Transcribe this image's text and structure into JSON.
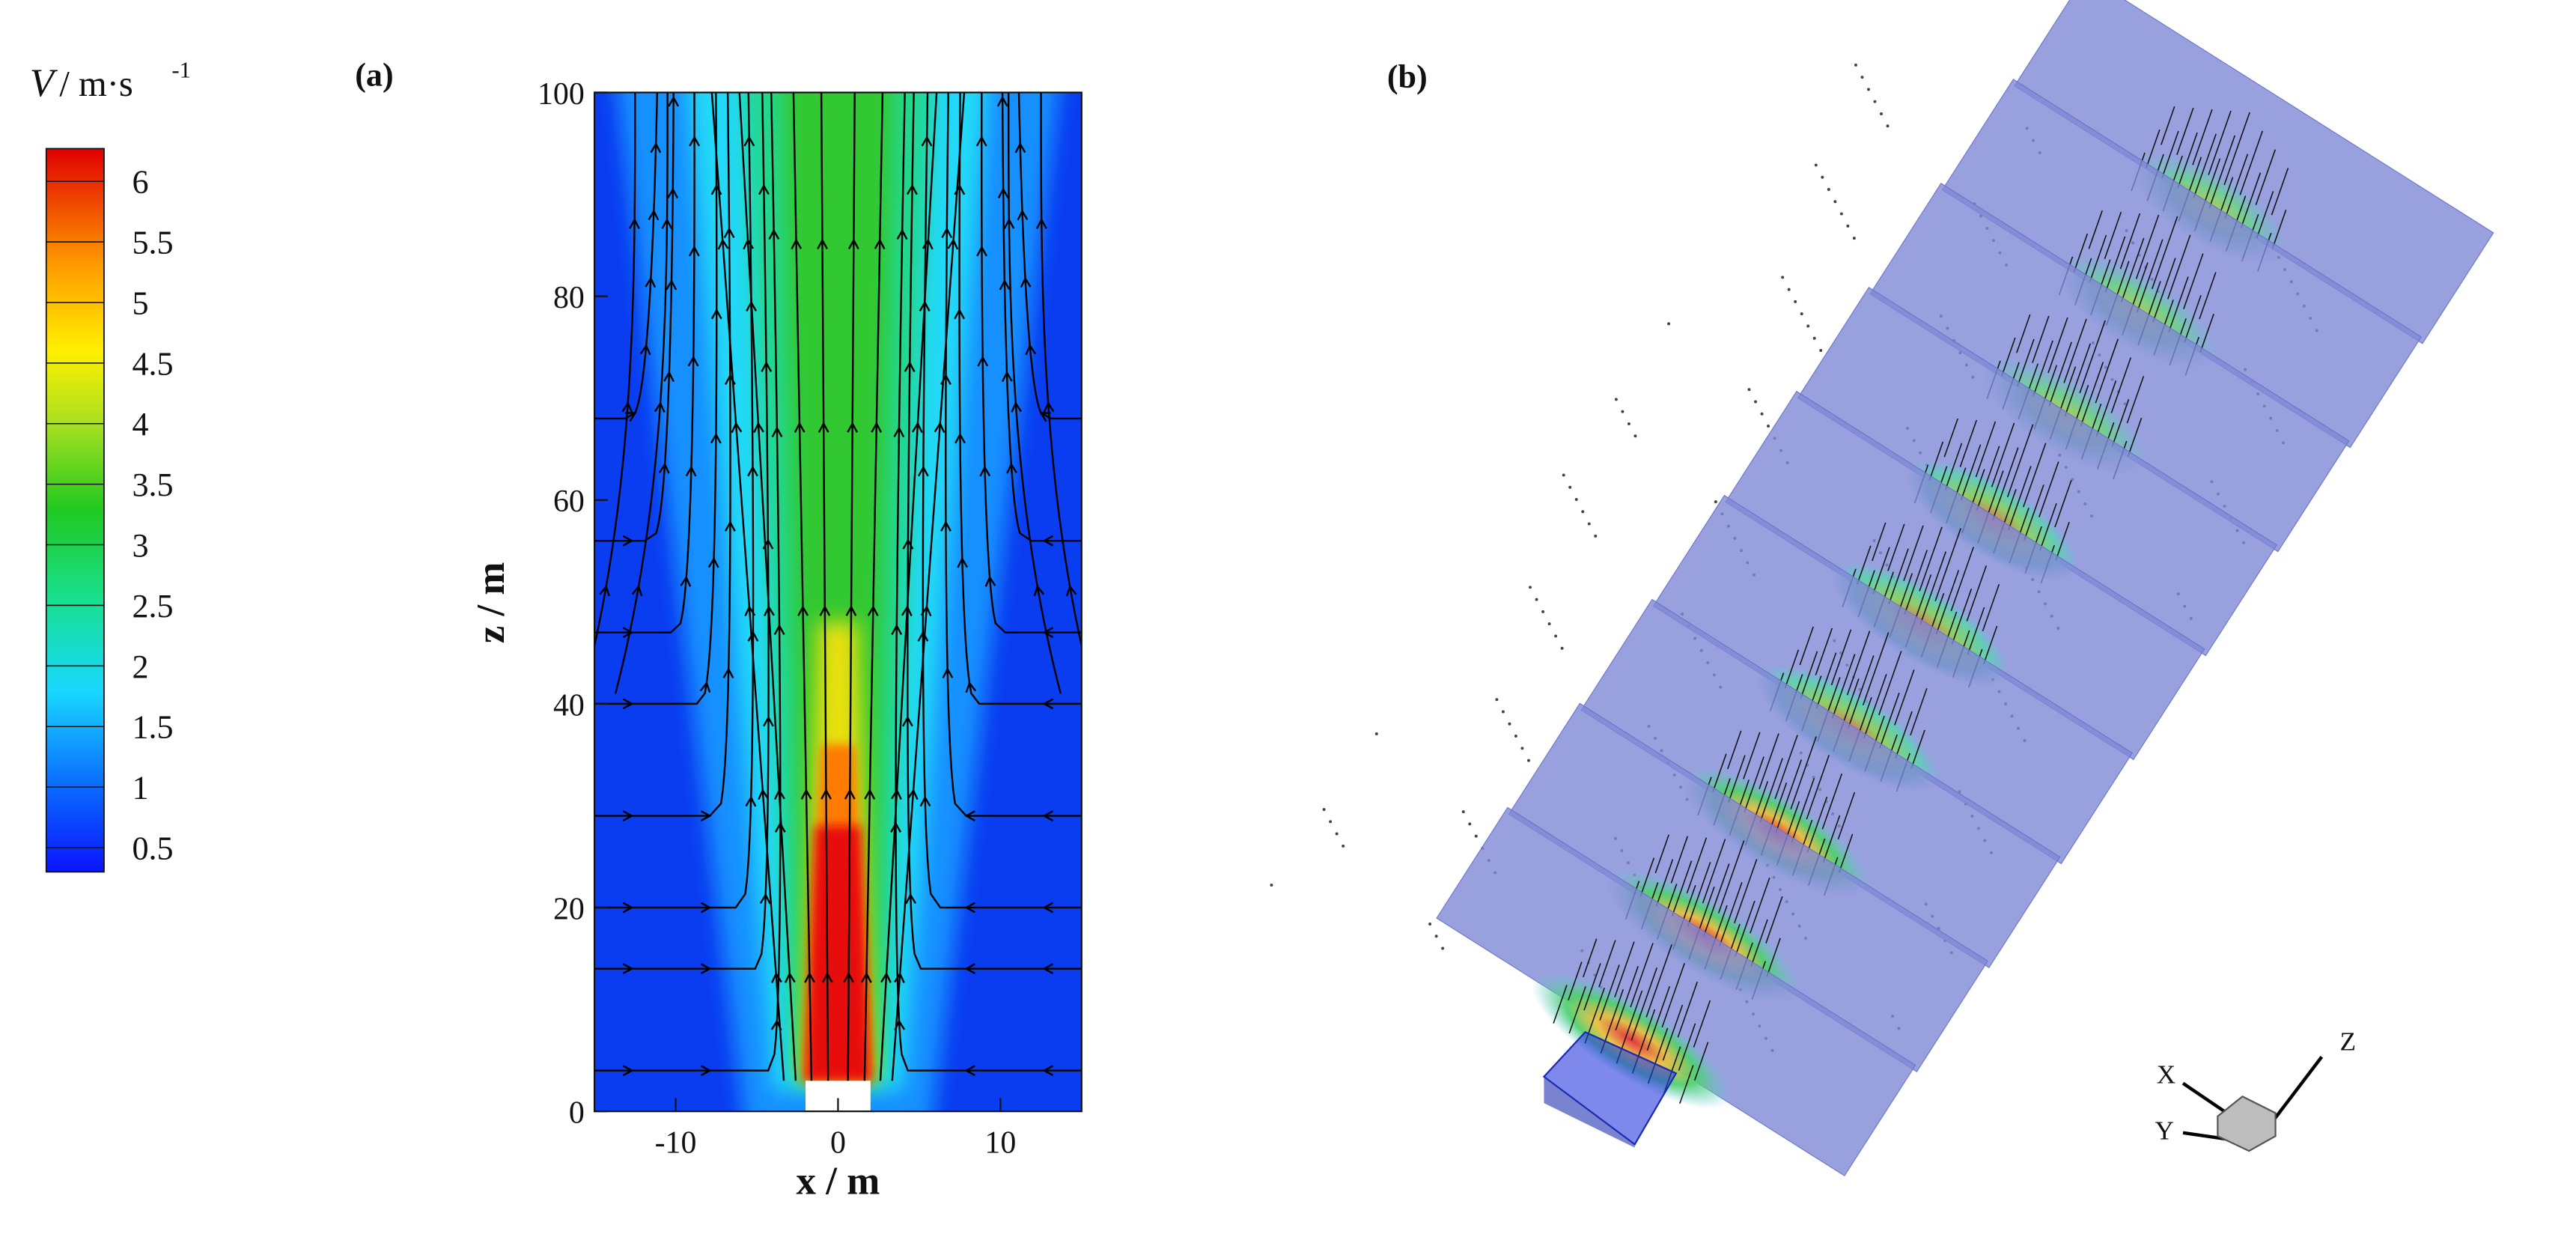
{
  "chart_data": [
    {
      "type": "contour",
      "panel_label": "(a)",
      "x_label": "x / m",
      "y_label": "z / m",
      "xlim": [
        -15,
        15
      ],
      "xticks": [
        -10,
        0,
        10
      ],
      "ylim": [
        0,
        100
      ],
      "yticks": [
        0,
        20,
        40,
        60,
        80,
        100
      ],
      "colorbar": {
        "title": "V",
        "unit": "/ m·s",
        "unit_exponent": "-1",
        "lim": [
          0.3,
          6.27
        ],
        "ticks": [
          0.5,
          1,
          1.5,
          2,
          2.5,
          3,
          3.5,
          4,
          4.5,
          5,
          5.5,
          6
        ]
      }
    },
    {
      "type": "3d",
      "panel_label": "(b)",
      "axis_labels": [
        "X",
        "Y",
        "Z"
      ]
    }
  ]
}
